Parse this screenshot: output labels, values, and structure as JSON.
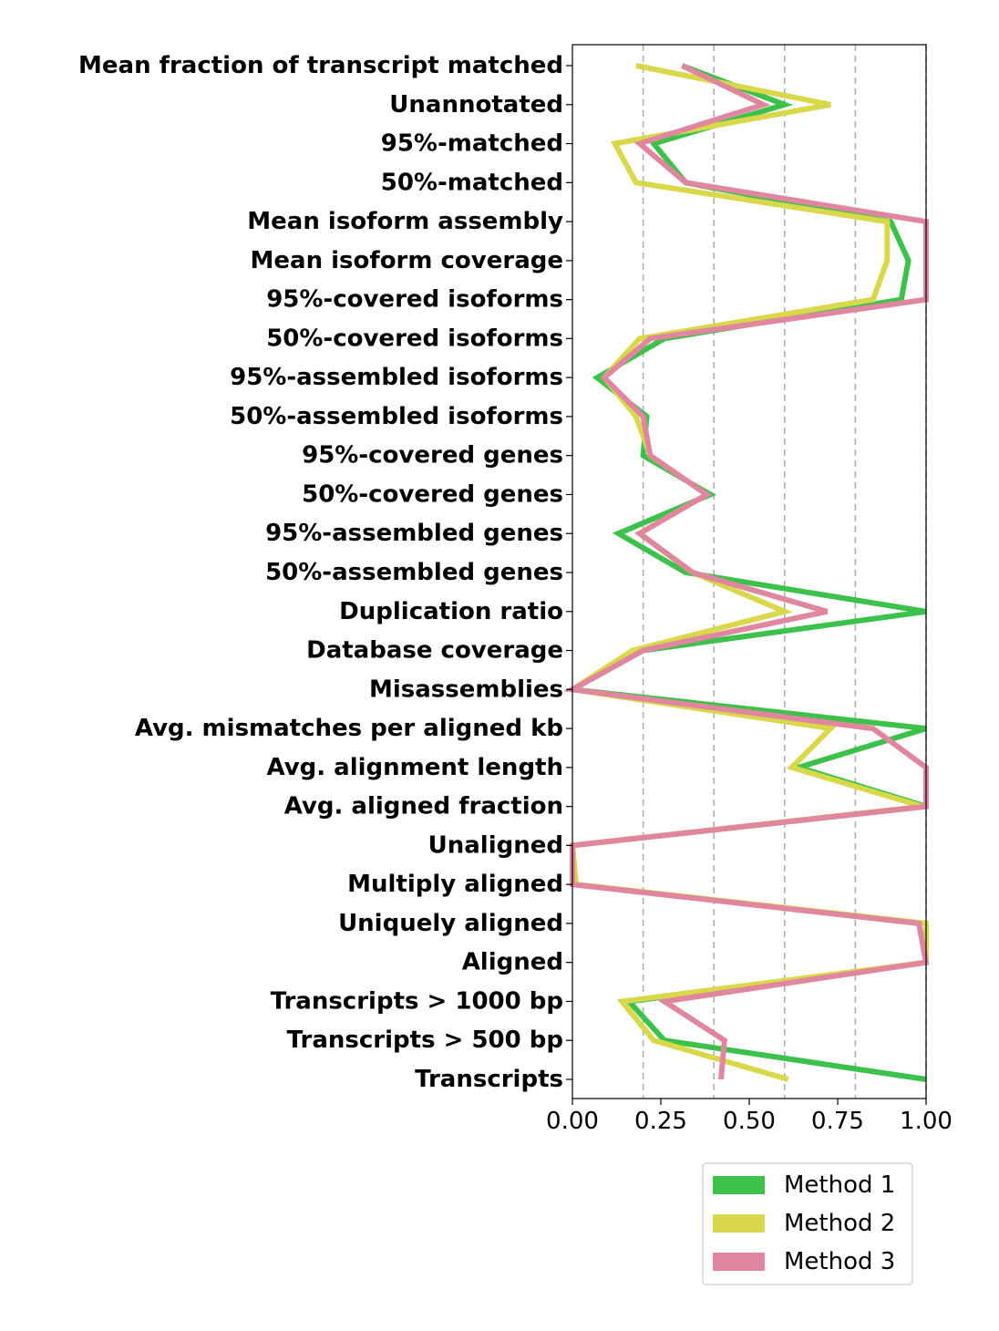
{
  "chart_data": {
    "type": "line",
    "orientation": "horizontal",
    "categories": [
      "Mean fraction of transcript matched",
      "Unannotated",
      "95%-matched",
      "50%-matched",
      "Mean isoform assembly",
      "Mean isoform coverage",
      "95%-covered isoforms",
      "50%-covered isoforms",
      "95%-assembled isoforms",
      "50%-assembled isoforms",
      "95%-covered genes",
      "50%-covered genes",
      "95%-assembled genes",
      "50%-assembled genes",
      "Duplication ratio",
      "Database coverage",
      "Misassemblies",
      "Avg. mismatches per aligned kb",
      "Avg. alignment length",
      "Avg. aligned fraction",
      "Unaligned",
      "Multiply aligned",
      "Uniquely aligned",
      "Aligned",
      "Transcripts > 1000 bp",
      "Transcripts > 500 bp",
      "Transcripts"
    ],
    "series": [
      {
        "name": "Method 1",
        "color": "#3cc24a",
        "values": [
          0.31,
          0.6,
          0.23,
          0.32,
          0.9,
          0.95,
          0.93,
          0.26,
          0.07,
          0.21,
          0.2,
          0.39,
          0.13,
          0.32,
          1.0,
          0.2,
          0.0,
          1.0,
          0.64,
          1.0,
          0.0,
          0.01,
          0.98,
          1.0,
          0.16,
          0.26,
          1.0
        ]
      },
      {
        "name": "Method 2",
        "color": "#d8d84a",
        "values": [
          0.18,
          0.73,
          0.12,
          0.18,
          0.89,
          0.89,
          0.85,
          0.19,
          0.09,
          0.18,
          0.22,
          0.38,
          0.19,
          0.34,
          0.6,
          0.17,
          0.0,
          0.73,
          0.62,
          0.99,
          0.0,
          0.01,
          1.0,
          1.0,
          0.14,
          0.23,
          0.61
        ]
      },
      {
        "name": "Method 3",
        "color": "#e0869f",
        "values": [
          0.31,
          0.54,
          0.19,
          0.32,
          1.0,
          1.0,
          1.0,
          0.22,
          0.09,
          0.2,
          0.22,
          0.38,
          0.19,
          0.34,
          0.72,
          0.2,
          0.0,
          0.85,
          1.0,
          1.0,
          0.0,
          0.0,
          0.98,
          1.0,
          0.26,
          0.43,
          0.42
        ]
      }
    ],
    "xlim": [
      0,
      1
    ],
    "xticks": [
      "0.00",
      "0.25",
      "0.50",
      "0.75",
      "1.00"
    ],
    "xtick_values": [
      0,
      0.25,
      0.5,
      0.75,
      1.0
    ],
    "grid_lines": [
      0.2,
      0.4,
      0.6,
      0.8,
      1.0
    ],
    "grid": true,
    "legend_position": "bottom-right"
  }
}
